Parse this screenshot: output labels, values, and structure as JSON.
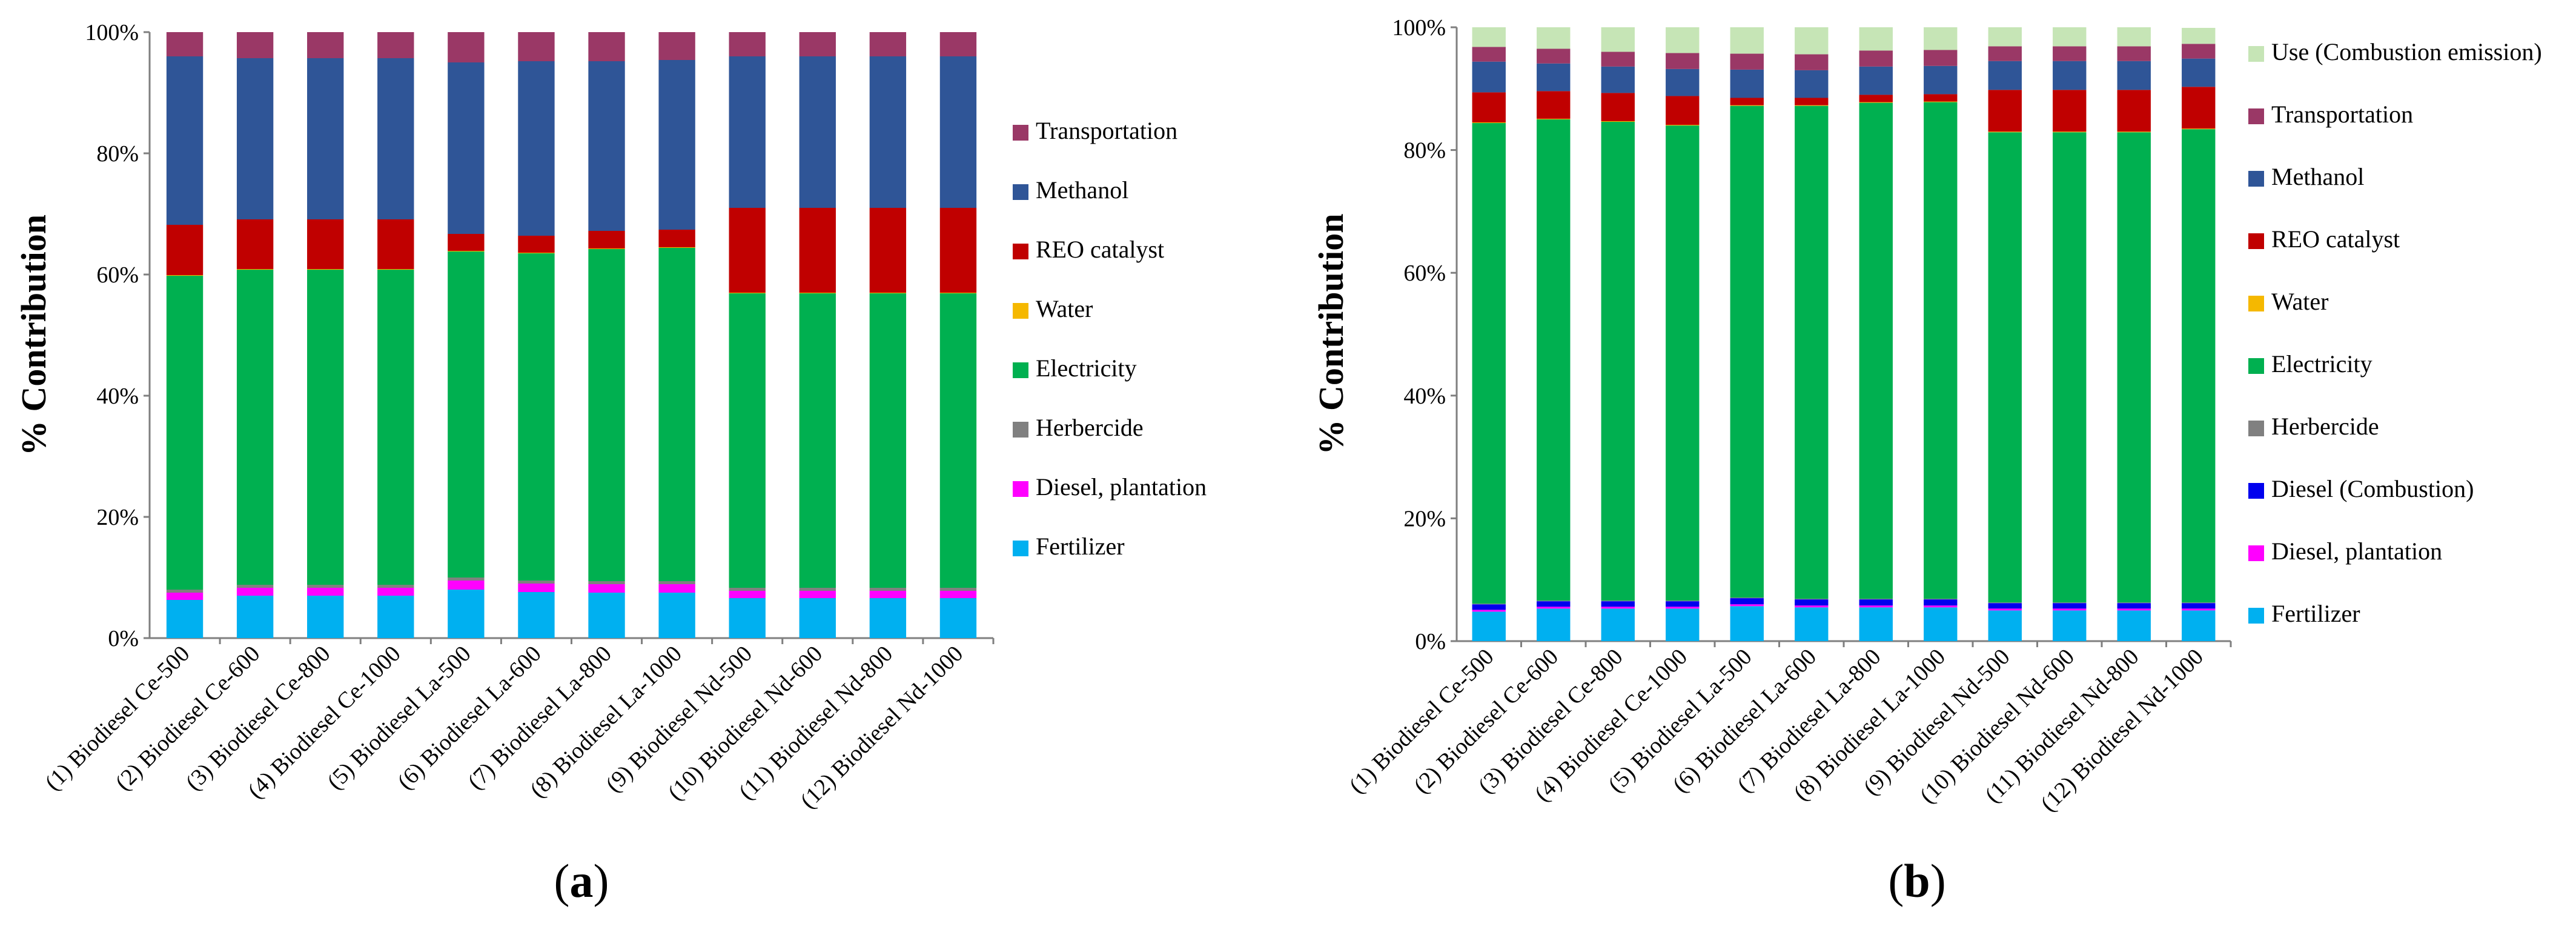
{
  "colors": {
    "Use (Combustion emission)": "#c6e5b6",
    "Transportation": "#9a3866",
    "Methanol": "#2f5597",
    "REO catalyst": "#c00000",
    "Water": "#f5b800",
    "Electricity": "#00b050",
    "Herbercide": "#808080",
    "Diesel (Combustion)": "#0000ee",
    "Diesel, plantation": "#ff00ff",
    "Fertilizer": "#00b0f0"
  },
  "chart_data": [
    {
      "type": "bar",
      "stacked": true,
      "panel": "a",
      "caption_prefix": "(",
      "caption_letter": "a",
      "caption_suffix": ")",
      "ylabel": "% Contribution",
      "ylim": [
        0,
        100
      ],
      "yticks": [
        "0%",
        "20%",
        "40%",
        "60%",
        "80%",
        "100%"
      ],
      "categories": [
        "(1) Biodiesel Ce-500",
        "(2) Biodiesel Ce-600",
        "(3) Biodiesel Ce-800",
        "(4) Biodiesel Ce-1000",
        "(5) Biodiesel La-500",
        "(6) Biodiesel La-600",
        "(7) Biodiesel La-800",
        "(8) Biodiesel La-1000",
        "(9) Biodiesel Nd-500",
        "(10) Biodiesel Nd-600",
        "(11) Biodiesel Nd-800",
        "(12) Biodiesel Nd-1000"
      ],
      "legend": [
        "Transportation",
        "Methanol",
        "REO catalyst",
        "Water",
        "Electricity",
        "Herbercide",
        "Diesel, plantation",
        "Fertilizer"
      ],
      "series": [
        {
          "name": "Fertilizer",
          "values": [
            6.3,
            7.0,
            7.0,
            7.0,
            8.0,
            7.6,
            7.5,
            7.5,
            6.6,
            6.6,
            6.6,
            6.6
          ]
        },
        {
          "name": "Diesel, plantation",
          "values": [
            1.2,
            1.3,
            1.3,
            1.3,
            1.5,
            1.4,
            1.4,
            1.4,
            1.2,
            1.2,
            1.2,
            1.2
          ]
        },
        {
          "name": "Herbercide",
          "values": [
            0.5,
            0.5,
            0.5,
            0.5,
            0.5,
            0.5,
            0.5,
            0.5,
            0.5,
            0.5,
            0.5,
            0.5
          ]
        },
        {
          "name": "Electricity",
          "values": [
            51.8,
            52.0,
            52.0,
            52.0,
            53.8,
            54.0,
            54.8,
            55.0,
            48.6,
            48.6,
            48.6,
            48.6
          ]
        },
        {
          "name": "Water",
          "values": [
            0.1,
            0.1,
            0.1,
            0.1,
            0.1,
            0.1,
            0.1,
            0.1,
            0.1,
            0.1,
            0.1,
            0.1
          ]
        },
        {
          "name": "REO catalyst",
          "values": [
            8.3,
            8.2,
            8.2,
            8.2,
            2.8,
            2.8,
            2.9,
            2.9,
            14.0,
            14.0,
            14.0,
            14.0
          ]
        },
        {
          "name": "Methanol",
          "values": [
            27.8,
            26.6,
            26.6,
            26.6,
            28.3,
            28.8,
            28.0,
            28.0,
            25.0,
            25.0,
            25.0,
            25.0
          ]
        },
        {
          "name": "Transportation",
          "values": [
            4.0,
            4.3,
            4.3,
            4.3,
            5.0,
            4.8,
            4.8,
            4.6,
            4.0,
            4.0,
            4.0,
            4.0
          ]
        }
      ]
    },
    {
      "type": "bar",
      "stacked": true,
      "panel": "b",
      "caption_prefix": "(",
      "caption_letter": "b",
      "caption_suffix": ")",
      "ylabel": "% Contribution",
      "ylim": [
        0,
        100
      ],
      "yticks": [
        "0%",
        "20%",
        "40%",
        "60%",
        "80%",
        "100%"
      ],
      "categories": [
        "(1) Biodiesel Ce-500",
        "(2) Biodiesel Ce-600",
        "(3) Biodiesel Ce-800",
        "(4) Biodiesel Ce-1000",
        "(5) Biodiesel La-500",
        "(6) Biodiesel La-600",
        "(7) Biodiesel La-800",
        "(8) Biodiesel La-1000",
        "(9) Biodiesel Nd-500",
        "(10) Biodiesel Nd-600",
        "(11) Biodiesel Nd-800",
        "(12) Biodiesel Nd-1000"
      ],
      "legend": [
        "Use (Combustion emission)",
        "Transportation",
        "Methanol",
        "REO catalyst",
        "Water",
        "Electricity",
        "Herbercide",
        "Diesel (Combustion)",
        "Diesel, plantation",
        "Fertilizer"
      ],
      "series": [
        {
          "name": "Fertilizer",
          "values": [
            4.8,
            5.3,
            5.3,
            5.3,
            5.7,
            5.5,
            5.5,
            5.5,
            5.0,
            5.0,
            5.0,
            5.0
          ]
        },
        {
          "name": "Diesel, plantation",
          "values": [
            0.3,
            0.3,
            0.3,
            0.3,
            0.3,
            0.3,
            0.3,
            0.3,
            0.3,
            0.3,
            0.3,
            0.3
          ]
        },
        {
          "name": "Diesel (Combustion)",
          "values": [
            0.9,
            0.9,
            0.9,
            0.9,
            1.0,
            1.0,
            1.0,
            1.0,
            0.9,
            0.9,
            0.9,
            0.9
          ]
        },
        {
          "name": "Herbercide",
          "values": [
            0.1,
            0.1,
            0.1,
            0.1,
            0.1,
            0.1,
            0.1,
            0.1,
            0.1,
            0.1,
            0.1,
            0.1
          ]
        },
        {
          "name": "Electricity",
          "values": [
            78.3,
            78.4,
            78.0,
            77.4,
            80.1,
            80.3,
            80.8,
            80.9,
            76.6,
            76.6,
            76.6,
            77.1
          ]
        },
        {
          "name": "Water",
          "values": [
            0.1,
            0.1,
            0.1,
            0.1,
            0.1,
            0.1,
            0.1,
            0.1,
            0.1,
            0.1,
            0.1,
            0.1
          ]
        },
        {
          "name": "REO catalyst",
          "values": [
            4.9,
            4.5,
            4.6,
            4.7,
            1.2,
            1.2,
            1.2,
            1.2,
            6.8,
            6.8,
            6.8,
            6.8
          ]
        },
        {
          "name": "Methanol",
          "values": [
            5.0,
            4.5,
            4.3,
            4.4,
            4.6,
            4.5,
            4.6,
            4.6,
            4.7,
            4.7,
            4.7,
            4.6
          ]
        },
        {
          "name": "Transportation",
          "values": [
            2.4,
            2.4,
            2.4,
            2.6,
            2.6,
            2.6,
            2.6,
            2.6,
            2.4,
            2.4,
            2.4,
            2.4
          ]
        },
        {
          "name": "Use (Combustion emission)",
          "values": [
            3.2,
            3.5,
            4.0,
            4.2,
            4.3,
            4.4,
            3.8,
            3.7,
            3.1,
            3.1,
            3.1,
            2.6
          ]
        }
      ]
    }
  ]
}
